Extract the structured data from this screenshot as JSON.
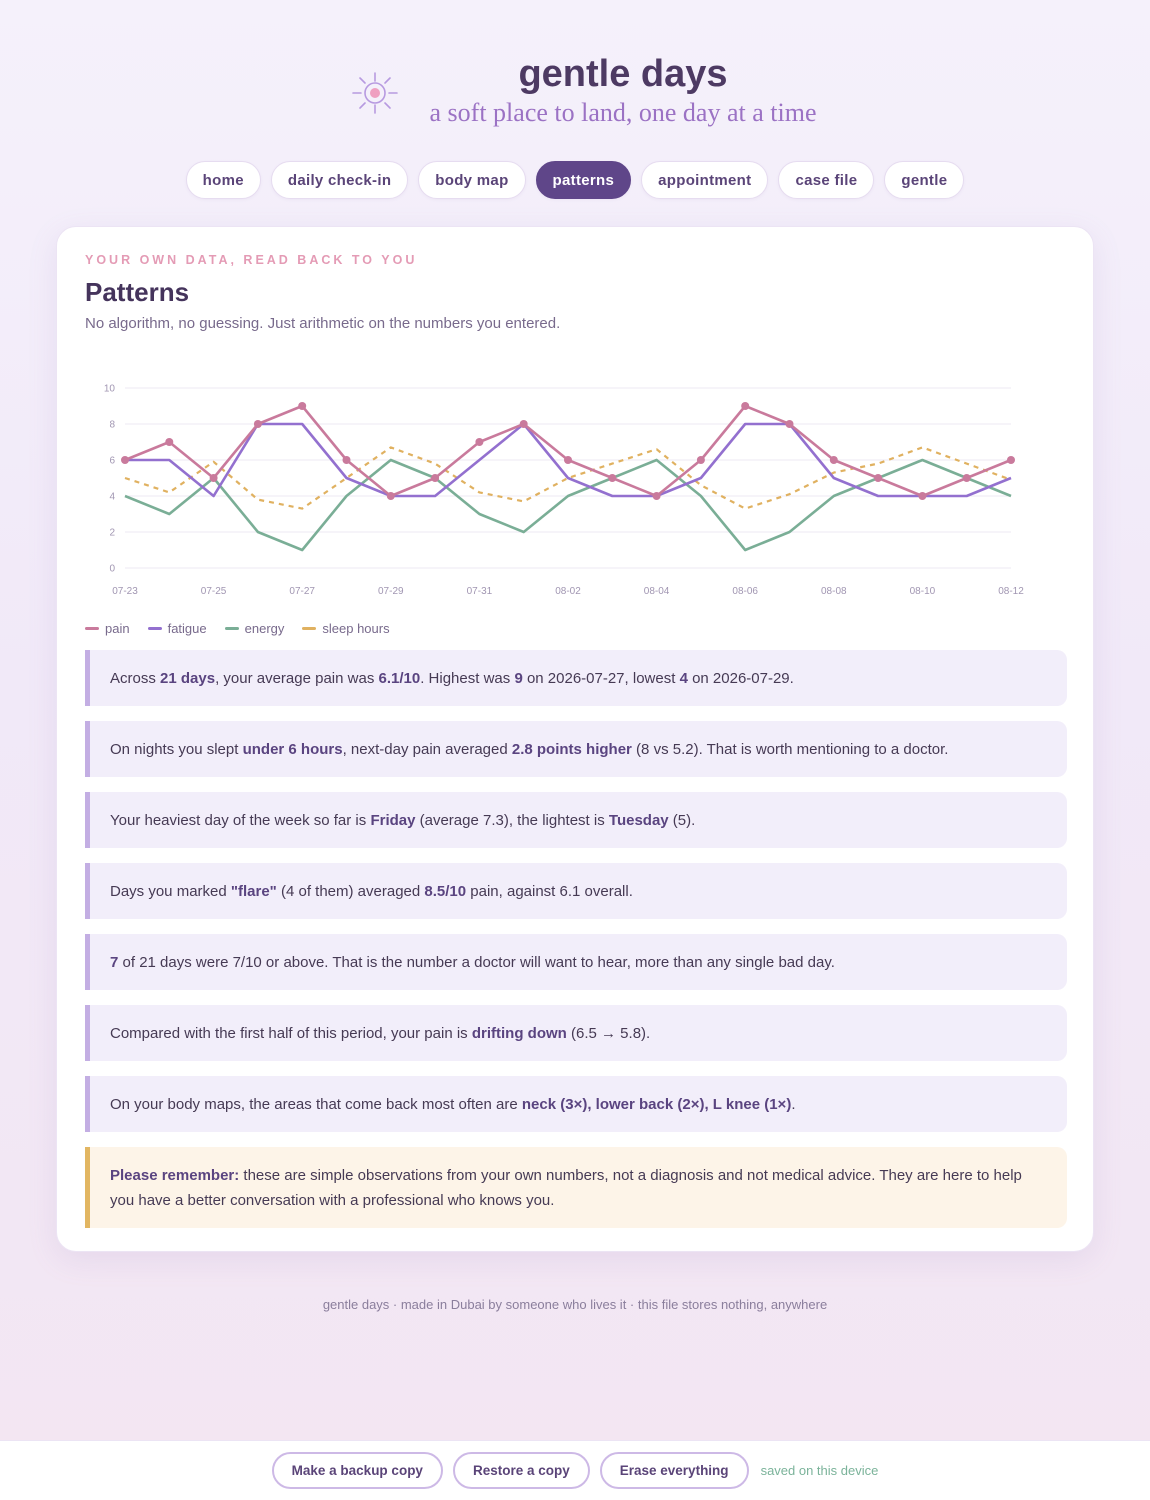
{
  "app": {
    "title": "gentle days",
    "subtitle": "a soft place to land, one day at a time",
    "logo_icon": "sun-icon"
  },
  "nav": {
    "tabs": [
      {
        "label": "home",
        "active": false
      },
      {
        "label": "daily check-in",
        "active": false
      },
      {
        "label": "body map",
        "active": false
      },
      {
        "label": "patterns",
        "active": true
      },
      {
        "label": "appointment",
        "active": false
      },
      {
        "label": "case file",
        "active": false
      },
      {
        "label": "gentle",
        "active": false
      }
    ]
  },
  "patterns": {
    "eyebrow": "YOUR OWN DATA, READ BACK TO YOU",
    "title": "Patterns",
    "description": "No algorithm, no guessing. Just arithmetic on the numbers you entered."
  },
  "chart_data": {
    "type": "line",
    "x": [
      "07-23",
      "07-24",
      "07-25",
      "07-26",
      "07-27",
      "07-28",
      "07-29",
      "07-30",
      "07-31",
      "08-01",
      "08-02",
      "08-03",
      "08-04",
      "08-05",
      "08-06",
      "08-07",
      "08-08",
      "08-09",
      "08-10",
      "08-11",
      "08-12"
    ],
    "x_tick_labels": [
      "07-23",
      "07-25",
      "07-27",
      "07-29",
      "07-31",
      "08-02",
      "08-04",
      "08-06",
      "08-08",
      "08-10",
      "08-12"
    ],
    "ylim": [
      0,
      10
    ],
    "y_ticks": [
      0,
      2,
      4,
      6,
      8,
      10
    ],
    "grid": true,
    "legend": "bottom-left",
    "series": [
      {
        "name": "pain",
        "color": "#c97a9c",
        "style": "solid",
        "markers": true,
        "values": [
          6,
          7,
          5,
          8,
          9,
          6,
          4,
          5,
          7,
          8,
          6,
          5,
          4,
          6,
          9,
          8,
          6,
          5,
          4,
          5,
          6
        ]
      },
      {
        "name": "fatigue",
        "color": "#9370cf",
        "style": "solid",
        "markers": false,
        "values": [
          6,
          6,
          4,
          8,
          8,
          5,
          4,
          4,
          6,
          8,
          5,
          4,
          4,
          5,
          8,
          8,
          5,
          4,
          4,
          4,
          5
        ]
      },
      {
        "name": "energy",
        "color": "#7aae96",
        "style": "solid",
        "markers": false,
        "values": [
          4,
          3,
          5,
          2,
          1,
          4,
          6,
          5,
          3,
          2,
          4,
          5,
          6,
          4,
          1,
          2,
          4,
          5,
          6,
          5,
          4
        ]
      },
      {
        "name": "sleep hours",
        "color": "#e0b160",
        "style": "dashed",
        "markers": false,
        "values": [
          5,
          4.2,
          5.9,
          3.8,
          3.3,
          5,
          6.7,
          5.8,
          4.2,
          3.7,
          5,
          5.8,
          6.6,
          4.6,
          3.3,
          4.1,
          5.3,
          5.8,
          6.7,
          5.8,
          4.9
        ]
      }
    ]
  },
  "insights": [
    {
      "parts": [
        "Across ",
        {
          "b": "21 days"
        },
        ", your average pain was ",
        {
          "b": "6.1/10"
        },
        ". Highest was ",
        {
          "b": "9"
        },
        " on 2026-07-27, lowest ",
        {
          "b": "4"
        },
        " on 2026-07-29."
      ]
    },
    {
      "parts": [
        "On nights you slept ",
        {
          "b": "under 6 hours"
        },
        ", next-day pain averaged ",
        {
          "b": "2.8 points higher"
        },
        " (8 vs 5.2). That is worth mentioning to a doctor."
      ]
    },
    {
      "parts": [
        "Your heaviest day of the week so far is ",
        {
          "b": "Friday"
        },
        " (average 7.3), the lightest is ",
        {
          "b": "Tuesday"
        },
        " (5)."
      ]
    },
    {
      "parts": [
        "Days you marked ",
        {
          "b": "\"flare\""
        },
        " (4 of them) averaged ",
        {
          "b": "8.5/10"
        },
        " pain, against 6.1 overall."
      ]
    },
    {
      "parts": [
        {
          "b": "7"
        },
        " of 21 days were 7/10 or above. That is the number a doctor will want to hear, more than any single bad day."
      ]
    },
    {
      "parts": [
        "Compared with the first half of this period, your pain is ",
        {
          "b": "drifting down"
        },
        " (6.5 → 5.8)."
      ]
    },
    {
      "parts": [
        "On your body maps, the areas that come back most often are ",
        {
          "b": "neck (3×), lower back (2×), L knee (1×)"
        },
        "."
      ]
    }
  ],
  "reminder": {
    "bold": "Please remember:",
    "text": " these are simple observations from your own numbers, not a diagnosis and not medical advice. They are here to help you have a better conversation with a professional who knows you."
  },
  "footer": {
    "text": "gentle days · made in Dubai by someone who lives it · this file stores nothing, anywhere"
  },
  "bottom_bar": {
    "backup_label": "Make a backup copy",
    "restore_label": "Restore a copy",
    "erase_label": "Erase everything",
    "status": "saved on this device"
  }
}
